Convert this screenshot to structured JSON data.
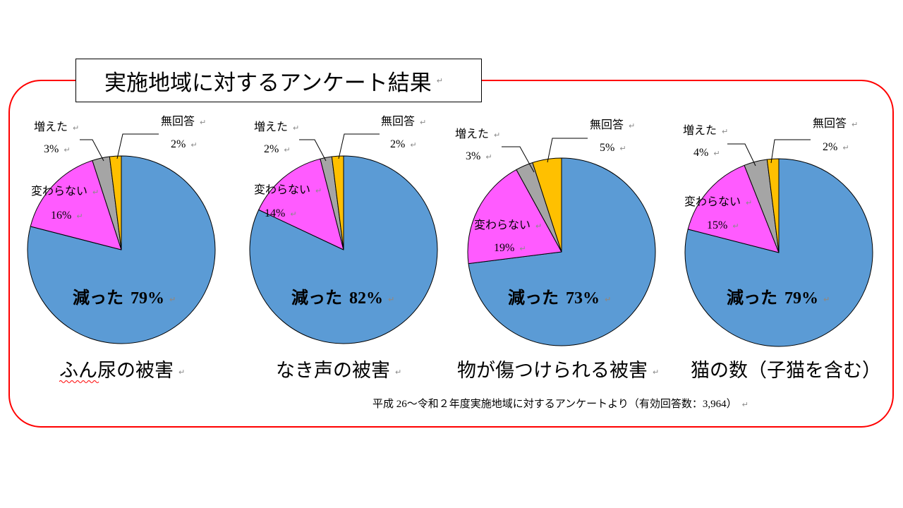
{
  "title_box": {
    "text": "実施地域に対するアンケート結果"
  },
  "paragraph_mark": "↵",
  "footer": {
    "text": "平成 26～令和２年度実施地域に対するアンケートより（有効回答数：3,964）"
  },
  "colors": {
    "frame": "#FF0000"
  },
  "chart_data": [
    {
      "type": "pie",
      "title": "ふん尿の被害",
      "categories": [
        "減った",
        "変わらない",
        "増えた",
        "無回答"
      ],
      "values": [
        79,
        16,
        3,
        2
      ],
      "unit": "%",
      "colors": [
        "#5B9BD5",
        "#FF5BFF",
        "#A5A5A5",
        "#FFC000"
      ]
    },
    {
      "type": "pie",
      "title": "なき声の被害",
      "categories": [
        "減った",
        "変わらない",
        "増えた",
        "無回答"
      ],
      "values": [
        82,
        14,
        2,
        2
      ],
      "unit": "%",
      "colors": [
        "#5B9BD5",
        "#FF5BFF",
        "#A5A5A5",
        "#FFC000"
      ]
    },
    {
      "type": "pie",
      "title": "物が傷つけられる被害",
      "categories": [
        "減った",
        "変わらない",
        "増えた",
        "無回答"
      ],
      "values": [
        73,
        19,
        3,
        5
      ],
      "unit": "%",
      "colors": [
        "#5B9BD5",
        "#FF5BFF",
        "#A5A5A5",
        "#FFC000"
      ]
    },
    {
      "type": "pie",
      "title": "猫の数（子猫を含む）",
      "categories": [
        "減った",
        "変わらない",
        "増えた",
        "無回答"
      ],
      "values": [
        79,
        15,
        4,
        2
      ],
      "unit": "%",
      "colors": [
        "#5B9BD5",
        "#FF5BFF",
        "#A5A5A5",
        "#FFC000"
      ]
    }
  ]
}
